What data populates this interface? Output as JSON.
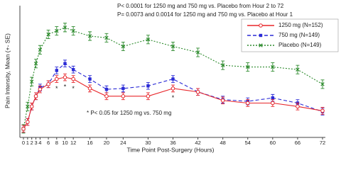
{
  "chart_data": {
    "type": "line",
    "annotations": [
      "P< 0.0001 for 1250 mg and 750 mg vs. Placebo from Hour 2 to 72",
      "P= 0.0073 and 0.0014 for 1250 mg and 750 mg vs. Placebo at Hour 1",
      "* P< 0.05 for 1250 mg vs. 750 mg"
    ],
    "significance_marks": [
      {
        "x": 8,
        "label": "*"
      },
      {
        "x": 10,
        "label": "*"
      },
      {
        "x": 12,
        "label": "*"
      },
      {
        "x": 36,
        "label": "*"
      }
    ],
    "x_label": "Time Point Post-Surgery (Hours)",
    "y_label": "Pain Intensity, Mean (+- SE)",
    "x": [
      0,
      1,
      2,
      3,
      4,
      6,
      8,
      10,
      12,
      16,
      20,
      24,
      30,
      36,
      42,
      48,
      54,
      60,
      66,
      72
    ],
    "xlim": [
      0,
      72
    ],
    "xticks": [
      0,
      1,
      2,
      3,
      4,
      6,
      8,
      10,
      12,
      16,
      20,
      24,
      30,
      36,
      42,
      48,
      54,
      60,
      66,
      72
    ],
    "ylim": [
      0,
      8
    ],
    "legend": "top-right",
    "series": [
      {
        "name": "1250 mg (N=152)",
        "color": "#e8262a",
        "line_style": "solid",
        "marker": "circle",
        "values": [
          0.5,
          0.9,
          1.8,
          2.4,
          2.8,
          3.1,
          3.4,
          3.5,
          3.4,
          2.85,
          2.4,
          2.4,
          2.4,
          2.85,
          2.65,
          2.15,
          2.0,
          2.0,
          1.8,
          1.55
        ],
        "errors": [
          0.2,
          0.2,
          0.2,
          0.2,
          0.2,
          0.2,
          0.2,
          0.2,
          0.2,
          0.2,
          0.2,
          0.2,
          0.2,
          0.2,
          0.2,
          0.2,
          0.2,
          0.2,
          0.2,
          0.2
        ]
      },
      {
        "name": "750 mg (N=149)",
        "color": "#2b2bd6",
        "line_style": "dashed",
        "marker": "square",
        "values": [
          0.5,
          0.9,
          1.8,
          2.4,
          2.9,
          3.1,
          3.9,
          4.3,
          3.95,
          3.4,
          2.8,
          2.85,
          3.0,
          3.4,
          2.65,
          2.2,
          2.1,
          2.3,
          2.0,
          1.5
        ],
        "errors": [
          0.2,
          0.2,
          0.2,
          0.2,
          0.2,
          0.2,
          0.2,
          0.2,
          0.2,
          0.2,
          0.2,
          0.2,
          0.2,
          0.2,
          0.2,
          0.2,
          0.2,
          0.2,
          0.2,
          0.2
        ]
      },
      {
        "name": "Placebo (N=149)",
        "color": "#2e8b2e",
        "line_style": "dotted",
        "marker": "x",
        "values": [
          0.5,
          1.8,
          3.25,
          4.3,
          5.1,
          6.0,
          6.2,
          6.4,
          6.2,
          5.9,
          5.8,
          5.3,
          5.7,
          5.3,
          4.95,
          4.2,
          4.1,
          4.1,
          3.95,
          3.1
        ],
        "errors": [
          0.25,
          0.25,
          0.25,
          0.25,
          0.25,
          0.25,
          0.25,
          0.25,
          0.25,
          0.25,
          0.25,
          0.25,
          0.25,
          0.25,
          0.25,
          0.25,
          0.25,
          0.25,
          0.25,
          0.25
        ]
      }
    ]
  }
}
